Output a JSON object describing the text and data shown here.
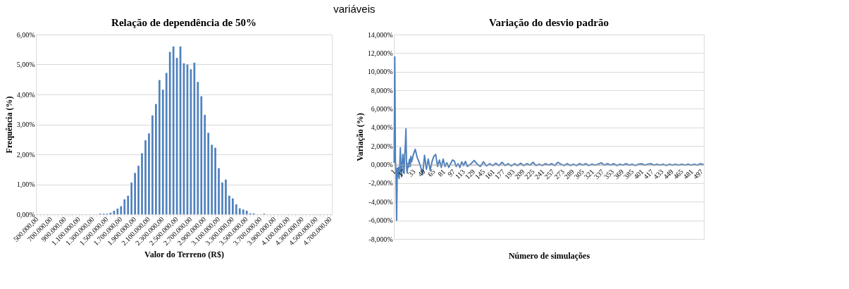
{
  "chart_data": [
    {
      "type": "bar",
      "title": "Relação de dependência de 50%",
      "xlabel": "Valor do Terreno (R$)",
      "ylabel": "Frequência (%)",
      "annotations": [
        "variáveis"
      ],
      "categories": [
        "500.000,00",
        null,
        null,
        null,
        "700.000,00",
        null,
        null,
        null,
        "900.000,00",
        null,
        null,
        null,
        "1.100.000,00",
        null,
        null,
        null,
        "1.300.000,00",
        null,
        null,
        null,
        "1.500.000,00",
        null,
        null,
        null,
        "1.700.000,00",
        null,
        null,
        null,
        "1.900.000,00",
        null,
        null,
        null,
        "2.100.000,00",
        null,
        null,
        null,
        "2.300.000,00",
        null,
        null,
        null,
        "2.500.000,00",
        null,
        null,
        null,
        "2.700.000,00",
        null,
        null,
        null,
        "2.900.000,00",
        null,
        null,
        null,
        "3.100.000,00",
        null,
        null,
        null,
        "3.300.000,00",
        null,
        null,
        null,
        "3.500.000,00",
        null,
        null,
        null,
        "3.700.000,00",
        null,
        null,
        null,
        "3.900.000,00",
        null,
        null,
        null,
        "4.100.000,00",
        null,
        null,
        null,
        "4.300.000,00",
        null,
        null,
        null,
        "4.500.000,00",
        null,
        null,
        null,
        "4.700.000,00"
      ],
      "values": [
        0,
        0,
        0,
        0,
        0,
        0,
        0,
        0,
        0,
        0,
        0,
        0,
        0,
        0,
        0,
        0,
        0,
        0,
        0.02,
        0.02,
        0.02,
        0.05,
        0.12,
        0.19,
        0.27,
        0.5,
        0.62,
        1.06,
        1.38,
        1.62,
        2.04,
        2.47,
        2.7,
        3.3,
        3.68,
        4.48,
        4.16,
        4.72,
        5.42,
        5.6,
        5.22,
        5.6,
        5.04,
        5.0,
        4.84,
        5.06,
        4.42,
        3.94,
        3.32,
        2.72,
        2.32,
        2.22,
        1.54,
        1.06,
        1.16,
        0.62,
        0.53,
        0.33,
        0.2,
        0.16,
        0.12,
        0.03,
        0.03,
        0,
        0,
        0.02,
        0,
        0,
        0,
        0,
        0,
        0,
        0,
        0,
        0,
        0,
        0,
        0,
        0,
        0,
        0,
        0,
        0,
        0,
        0
      ],
      "color": "#4f81bd",
      "ylim": [
        0,
        6
      ],
      "yticks": [
        {
          "value": 0,
          "label": "0,00%"
        },
        {
          "value": 1,
          "label": "1,00%"
        },
        {
          "value": 2,
          "label": "2,00%"
        },
        {
          "value": 3,
          "label": "3,00%"
        },
        {
          "value": 4,
          "label": "4,00%"
        },
        {
          "value": 5,
          "label": "5,00%"
        },
        {
          "value": 6,
          "label": "6,00%"
        }
      ],
      "grid": "y"
    },
    {
      "type": "line",
      "title": "Variação do desvio padrão",
      "xlabel": "Número de simulações",
      "ylabel": "Variação (%)",
      "series": [
        {
          "color": "#4f81bd",
          "x": [
            1,
            2,
            3,
            4,
            5,
            6,
            7,
            8,
            9,
            10,
            11,
            12,
            13,
            14,
            15,
            16,
            17,
            18,
            19,
            20,
            21,
            22,
            23,
            24,
            25,
            26,
            27,
            28,
            29,
            30,
            32,
            35,
            38,
            41,
            44,
            47,
            50,
            53,
            56,
            59,
            62,
            65,
            68,
            71,
            74,
            77,
            80,
            83,
            86,
            89,
            92,
            95,
            98,
            101,
            104,
            107,
            110,
            113,
            116,
            119,
            125,
            130,
            135,
            140,
            145,
            150,
            155,
            160,
            165,
            170,
            175,
            180,
            185,
            190,
            195,
            200,
            205,
            210,
            215,
            220,
            225,
            230,
            235,
            240,
            245,
            250,
            255,
            260,
            265,
            270,
            275,
            280,
            285,
            290,
            295,
            300,
            305,
            310,
            315,
            320,
            325,
            330,
            335,
            340,
            345,
            350,
            355,
            360,
            365,
            370,
            375,
            380,
            385,
            390,
            395,
            400,
            405,
            410,
            415,
            420,
            425,
            430,
            435,
            440,
            445,
            450,
            455,
            460,
            465,
            470,
            475,
            480,
            485,
            490,
            495,
            500
          ],
          "values": [
            0.2,
            11.6,
            0.5,
            -1.0,
            -6.0,
            -0.4,
            -1.3,
            -0.3,
            -1.5,
            -0.2,
            1.8,
            -0.8,
            -1.3,
            0.3,
            1.1,
            0.1,
            -0.9,
            1.0,
            2.0,
            3.85,
            -0.2,
            -0.9,
            0.1,
            -0.3,
            0.3,
            0.6,
            -0.2,
            0.9,
            0.3,
            0.5,
            1.1,
            1.65,
            0.8,
            0.3,
            -0.3,
            -1.0,
            1.0,
            -0.5,
            0.6,
            -0.6,
            0.3,
            0.9,
            1.1,
            -0.2,
            0.5,
            -0.3,
            0.6,
            -0.2,
            0.2,
            -0.3,
            0.1,
            0.5,
            0.4,
            -0.2,
            0.1,
            -0.3,
            0.3,
            -0.1,
            0.35,
            -0.2,
            0.1,
            0.45,
            0.05,
            -0.2,
            0.3,
            -0.15,
            0.1,
            -0.1,
            0.15,
            -0.1,
            0.25,
            -0.1,
            0.1,
            -0.15,
            0.1,
            -0.1,
            0.15,
            -0.1,
            0.1,
            -0.05,
            0.25,
            -0.1,
            0.05,
            -0.1,
            0.1,
            -0.05,
            0.1,
            -0.1,
            0.25,
            0.05,
            -0.1,
            0.1,
            -0.1,
            0.05,
            -0.1,
            0.1,
            -0.05,
            0.1,
            -0.1,
            0.05,
            -0.05,
            0.05,
            0.2,
            -0.05,
            0.1,
            -0.05,
            0.1,
            -0.1,
            0.05,
            -0.05,
            0.1,
            -0.05,
            0.05,
            -0.1,
            0.05,
            0.1,
            -0.05,
            0.05,
            0.1,
            -0.05,
            0.05,
            -0.05,
            0.05,
            -0.1,
            0.05,
            -0.05,
            0.05,
            -0.05,
            0.05,
            -0.05,
            0.05,
            -0.05,
            0.05,
            -0.05,
            0.1,
            0.0
          ]
        }
      ],
      "xlim": [
        0.5,
        500.5
      ],
      "xticks": [
        1,
        17,
        33,
        49,
        65,
        81,
        97,
        113,
        129,
        145,
        161,
        177,
        193,
        209,
        225,
        241,
        257,
        273,
        289,
        305,
        321,
        337,
        353,
        369,
        385,
        401,
        417,
        433,
        449,
        465,
        481,
        497
      ],
      "ylim": [
        -8,
        14
      ],
      "yticks": [
        {
          "value": -8,
          "label": "-8,000%"
        },
        {
          "value": -6,
          "label": "-6,000%"
        },
        {
          "value": -4,
          "label": "-4,000%"
        },
        {
          "value": -2,
          "label": "-2,000%"
        },
        {
          "value": 0,
          "label": "0,000%"
        },
        {
          "value": 2,
          "label": "2,000%"
        },
        {
          "value": 4,
          "label": "4,000%"
        },
        {
          "value": 6,
          "label": "6,000%"
        },
        {
          "value": 8,
          "label": "8,000%"
        },
        {
          "value": 10,
          "label": "10,000%"
        },
        {
          "value": 12,
          "label": "12,000%"
        },
        {
          "value": 14,
          "label": "14,000%"
        }
      ],
      "grid": "y",
      "legend": false,
      "marker": "none",
      "line_style": "solid"
    }
  ]
}
